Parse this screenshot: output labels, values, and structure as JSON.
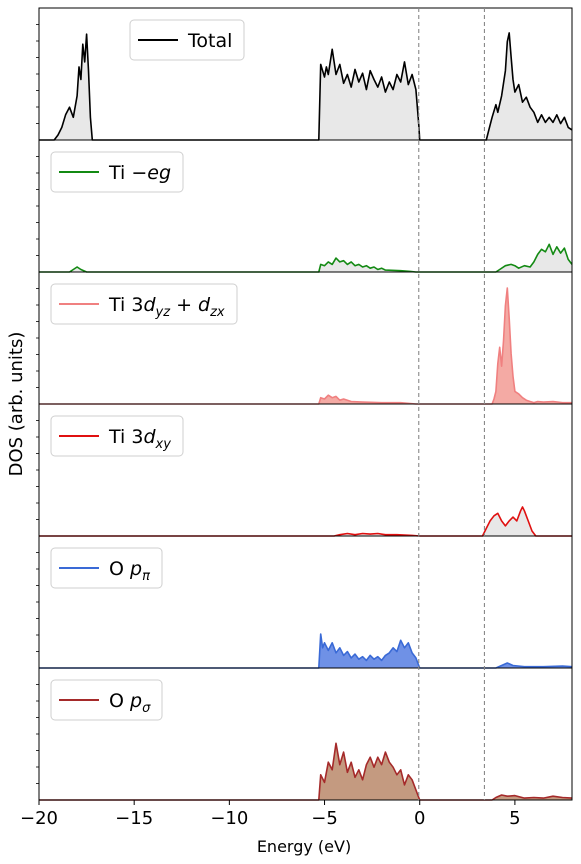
{
  "chart_data": {
    "type": "area",
    "ylabel": "DOS (arb. units)",
    "xlabel": "Energy (eV)",
    "xlim": [
      -20,
      8
    ],
    "x_ticks": [
      -20,
      -15,
      -10,
      -5,
      0,
      5
    ],
    "vlines": [
      -0.05,
      3.4
    ],
    "panels": [
      {
        "name": "Total",
        "legend": [
          {
            "text": "Total",
            "sub": ""
          }
        ],
        "line_color": "#000000",
        "fill_color": "#e8e8e8",
        "ylim": [
          0,
          1.0
        ],
        "points": [
          [
            -20,
            0
          ],
          [
            -19.2,
            0
          ],
          [
            -19.0,
            0.04
          ],
          [
            -18.8,
            0.1
          ],
          [
            -18.6,
            0.2
          ],
          [
            -18.4,
            0.26
          ],
          [
            -18.2,
            0.18
          ],
          [
            -18.0,
            0.35
          ],
          [
            -17.9,
            0.58
          ],
          [
            -17.8,
            0.48
          ],
          [
            -17.7,
            0.76
          ],
          [
            -17.6,
            0.62
          ],
          [
            -17.5,
            0.84
          ],
          [
            -17.4,
            0.55
          ],
          [
            -17.3,
            0.18
          ],
          [
            -17.2,
            0
          ],
          [
            -5.3,
            0
          ],
          [
            -5.2,
            0.6
          ],
          [
            -5.1,
            0.55
          ],
          [
            -5.0,
            0.5
          ],
          [
            -4.9,
            0.58
          ],
          [
            -4.8,
            0.52
          ],
          [
            -4.6,
            0.72
          ],
          [
            -4.5,
            0.62
          ],
          [
            -4.4,
            0.52
          ],
          [
            -4.2,
            0.6
          ],
          [
            -4.0,
            0.45
          ],
          [
            -3.8,
            0.52
          ],
          [
            -3.6,
            0.42
          ],
          [
            -3.4,
            0.56
          ],
          [
            -3.2,
            0.46
          ],
          [
            -3.0,
            0.53
          ],
          [
            -2.8,
            0.4
          ],
          [
            -2.6,
            0.55
          ],
          [
            -2.4,
            0.48
          ],
          [
            -2.2,
            0.42
          ],
          [
            -2.0,
            0.5
          ],
          [
            -1.8,
            0.38
          ],
          [
            -1.6,
            0.46
          ],
          [
            -1.4,
            0.4
          ],
          [
            -1.2,
            0.52
          ],
          [
            -1.0,
            0.46
          ],
          [
            -0.8,
            0.62
          ],
          [
            -0.6,
            0.44
          ],
          [
            -0.4,
            0.52
          ],
          [
            -0.2,
            0.4
          ],
          [
            -0.05,
            0.12
          ],
          [
            0.0,
            0
          ],
          [
            3.5,
            0
          ],
          [
            3.6,
            0.06
          ],
          [
            3.8,
            0.18
          ],
          [
            4.0,
            0.28
          ],
          [
            4.1,
            0.22
          ],
          [
            4.3,
            0.35
          ],
          [
            4.5,
            0.55
          ],
          [
            4.6,
            0.78
          ],
          [
            4.7,
            0.85
          ],
          [
            4.8,
            0.66
          ],
          [
            4.9,
            0.48
          ],
          [
            5.0,
            0.38
          ],
          [
            5.2,
            0.44
          ],
          [
            5.4,
            0.3
          ],
          [
            5.6,
            0.34
          ],
          [
            5.8,
            0.26
          ],
          [
            6.0,
            0.22
          ],
          [
            6.2,
            0.14
          ],
          [
            6.4,
            0.2
          ],
          [
            6.6,
            0.14
          ],
          [
            6.8,
            0.18
          ],
          [
            7.0,
            0.14
          ],
          [
            7.2,
            0.2
          ],
          [
            7.4,
            0.13
          ],
          [
            7.6,
            0.18
          ],
          [
            7.8,
            0.1
          ],
          [
            8.0,
            0.08
          ]
        ]
      },
      {
        "name": "Ti -eg",
        "legend": [
          {
            "text": "Ti ",
            "sub": ""
          },
          {
            "text": "−eg",
            "sub": "",
            "italic": true
          }
        ],
        "line_color": "#138a13",
        "fill_color": "#e8e8e8",
        "ylim": [
          0,
          1.0
        ],
        "points": [
          [
            -20,
            0
          ],
          [
            -18.4,
            0
          ],
          [
            -18.2,
            0.02
          ],
          [
            -18.0,
            0.04
          ],
          [
            -17.8,
            0.02
          ],
          [
            -17.5,
            0
          ],
          [
            -5.3,
            0
          ],
          [
            -5.2,
            0.06
          ],
          [
            -5.0,
            0.05
          ],
          [
            -4.8,
            0.08
          ],
          [
            -4.6,
            0.06
          ],
          [
            -4.4,
            0.11
          ],
          [
            -4.2,
            0.08
          ],
          [
            -4.0,
            0.09
          ],
          [
            -3.8,
            0.06
          ],
          [
            -3.6,
            0.08
          ],
          [
            -3.4,
            0.05
          ],
          [
            -3.2,
            0.06
          ],
          [
            -3.0,
            0.04
          ],
          [
            -2.8,
            0.05
          ],
          [
            -2.6,
            0.03
          ],
          [
            -2.4,
            0.04
          ],
          [
            -2.2,
            0.02
          ],
          [
            -2.0,
            0.03
          ],
          [
            -1.8,
            0.015
          ],
          [
            -1.0,
            0.01
          ],
          [
            -0.5,
            0.005
          ],
          [
            -0.2,
            0
          ],
          [
            4.0,
            0
          ],
          [
            4.2,
            0.02
          ],
          [
            4.5,
            0.05
          ],
          [
            4.8,
            0.06
          ],
          [
            5.0,
            0.05
          ],
          [
            5.2,
            0.03
          ],
          [
            5.5,
            0.05
          ],
          [
            5.8,
            0.04
          ],
          [
            6.0,
            0.08
          ],
          [
            6.2,
            0.14
          ],
          [
            6.4,
            0.18
          ],
          [
            6.6,
            0.16
          ],
          [
            6.8,
            0.22
          ],
          [
            7.0,
            0.14
          ],
          [
            7.2,
            0.2
          ],
          [
            7.4,
            0.15
          ],
          [
            7.6,
            0.19
          ],
          [
            7.8,
            0.1
          ],
          [
            8.0,
            0.06
          ]
        ]
      },
      {
        "name": "Ti 3d_yz + d_zx",
        "legend": [
          {
            "text": "Ti 3",
            "sub": ""
          },
          {
            "text": "d",
            "sub": "yz",
            "italic": true
          },
          {
            "text": " + ",
            "sub": ""
          },
          {
            "text": "d",
            "sub": "zx",
            "italic": true
          }
        ],
        "line_color": "#f08080",
        "fill_color": "#f4aaa4",
        "ylim": [
          0,
          1.0
        ],
        "points": [
          [
            -20,
            0
          ],
          [
            -5.3,
            0
          ],
          [
            -5.2,
            0.05
          ],
          [
            -5.0,
            0.04
          ],
          [
            -4.8,
            0.07
          ],
          [
            -4.6,
            0.05
          ],
          [
            -4.4,
            0.06
          ],
          [
            -4.2,
            0.03
          ],
          [
            -4.0,
            0.04
          ],
          [
            -3.6,
            0.02
          ],
          [
            -3.0,
            0.015
          ],
          [
            -2.0,
            0.01
          ],
          [
            -1.0,
            0.01
          ],
          [
            -0.2,
            0
          ],
          [
            3.8,
            0
          ],
          [
            3.9,
            0.04
          ],
          [
            4.0,
            0.1
          ],
          [
            4.1,
            0.32
          ],
          [
            4.2,
            0.45
          ],
          [
            4.3,
            0.3
          ],
          [
            4.4,
            0.5
          ],
          [
            4.5,
            0.78
          ],
          [
            4.6,
            0.92
          ],
          [
            4.7,
            0.68
          ],
          [
            4.8,
            0.4
          ],
          [
            4.9,
            0.22
          ],
          [
            5.0,
            0.1
          ],
          [
            5.2,
            0.08
          ],
          [
            5.4,
            0.05
          ],
          [
            5.6,
            0.03
          ],
          [
            5.8,
            0.02
          ],
          [
            6.0,
            0.01
          ],
          [
            6.2,
            0.02
          ],
          [
            6.5,
            0.015
          ],
          [
            7.0,
            0.02
          ],
          [
            7.5,
            0.01
          ],
          [
            8.0,
            0.01
          ]
        ]
      },
      {
        "name": "Ti 3d_xy",
        "legend": [
          {
            "text": "Ti 3",
            "sub": ""
          },
          {
            "text": "d",
            "sub": "xy",
            "italic": true
          }
        ],
        "line_color": "#e01010",
        "fill_color": "#e8e8e8",
        "ylim": [
          0,
          1.0
        ],
        "points": [
          [
            -20,
            0
          ],
          [
            -4.5,
            0
          ],
          [
            -4.2,
            0.01
          ],
          [
            -3.8,
            0.02
          ],
          [
            -3.4,
            0.01
          ],
          [
            -3.0,
            0.02
          ],
          [
            -2.6,
            0.015
          ],
          [
            -2.2,
            0.02
          ],
          [
            -1.8,
            0.01
          ],
          [
            -1.2,
            0.01
          ],
          [
            -0.4,
            0.005
          ],
          [
            0,
            0
          ],
          [
            3.3,
            0
          ],
          [
            3.5,
            0.06
          ],
          [
            3.7,
            0.12
          ],
          [
            3.9,
            0.16
          ],
          [
            4.1,
            0.18
          ],
          [
            4.3,
            0.12
          ],
          [
            4.5,
            0.08
          ],
          [
            4.7,
            0.12
          ],
          [
            4.9,
            0.15
          ],
          [
            5.1,
            0.12
          ],
          [
            5.3,
            0.2
          ],
          [
            5.4,
            0.23
          ],
          [
            5.5,
            0.2
          ],
          [
            5.7,
            0.12
          ],
          [
            5.9,
            0.04
          ],
          [
            6.1,
            0
          ],
          [
            8.0,
            0
          ]
        ]
      },
      {
        "name": "O p_pi",
        "legend": [
          {
            "text": "O ",
            "sub": ""
          },
          {
            "text": "p",
            "sub": "π",
            "italic": true
          }
        ],
        "line_color": "#3a6ad6",
        "fill_color": "#6f91e6",
        "ylim": [
          0,
          1.0
        ],
        "points": [
          [
            -20,
            0
          ],
          [
            -5.3,
            0
          ],
          [
            -5.2,
            0.27
          ],
          [
            -5.1,
            0.16
          ],
          [
            -5.0,
            0.2
          ],
          [
            -4.8,
            0.14
          ],
          [
            -4.6,
            0.2
          ],
          [
            -4.4,
            0.12
          ],
          [
            -4.2,
            0.16
          ],
          [
            -4.0,
            0.1
          ],
          [
            -3.8,
            0.13
          ],
          [
            -3.6,
            0.08
          ],
          [
            -3.4,
            0.11
          ],
          [
            -3.2,
            0.07
          ],
          [
            -3.0,
            0.09
          ],
          [
            -2.8,
            0.06
          ],
          [
            -2.6,
            0.1
          ],
          [
            -2.4,
            0.07
          ],
          [
            -2.2,
            0.09
          ],
          [
            -2.0,
            0.06
          ],
          [
            -1.8,
            0.1
          ],
          [
            -1.6,
            0.12
          ],
          [
            -1.4,
            0.16
          ],
          [
            -1.2,
            0.13
          ],
          [
            -1.0,
            0.22
          ],
          [
            -0.8,
            0.16
          ],
          [
            -0.6,
            0.2
          ],
          [
            -0.4,
            0.12
          ],
          [
            -0.2,
            0.08
          ],
          [
            0,
            0
          ],
          [
            4.0,
            0
          ],
          [
            4.3,
            0.02
          ],
          [
            4.6,
            0.04
          ],
          [
            4.9,
            0.02
          ],
          [
            5.5,
            0.01
          ],
          [
            6.5,
            0.01
          ],
          [
            7.5,
            0.015
          ],
          [
            8.0,
            0.01
          ]
        ]
      },
      {
        "name": "O p_sigma",
        "legend": [
          {
            "text": "O ",
            "sub": ""
          },
          {
            "text": "p",
            "sub": "σ",
            "italic": true
          }
        ],
        "line_color": "#a52a2a",
        "fill_color": "#c49a80",
        "ylim": [
          0,
          1.0
        ],
        "points": [
          [
            -20,
            0
          ],
          [
            -5.3,
            0
          ],
          [
            -5.2,
            0.2
          ],
          [
            -5.0,
            0.14
          ],
          [
            -4.8,
            0.3
          ],
          [
            -4.6,
            0.24
          ],
          [
            -4.4,
            0.45
          ],
          [
            -4.2,
            0.28
          ],
          [
            -4.0,
            0.38
          ],
          [
            -3.8,
            0.22
          ],
          [
            -3.6,
            0.3
          ],
          [
            -3.4,
            0.18
          ],
          [
            -3.2,
            0.24
          ],
          [
            -3.0,
            0.16
          ],
          [
            -2.8,
            0.28
          ],
          [
            -2.6,
            0.34
          ],
          [
            -2.4,
            0.26
          ],
          [
            -2.2,
            0.34
          ],
          [
            -2.0,
            0.28
          ],
          [
            -1.8,
            0.38
          ],
          [
            -1.6,
            0.3
          ],
          [
            -1.4,
            0.26
          ],
          [
            -1.2,
            0.2
          ],
          [
            -1.0,
            0.24
          ],
          [
            -0.8,
            0.12
          ],
          [
            -0.6,
            0.2
          ],
          [
            -0.4,
            0.16
          ],
          [
            -0.2,
            0.08
          ],
          [
            0,
            0
          ],
          [
            3.8,
            0
          ],
          [
            4.0,
            0.02
          ],
          [
            4.3,
            0.04
          ],
          [
            4.6,
            0.03
          ],
          [
            5.0,
            0.035
          ],
          [
            5.5,
            0.015
          ],
          [
            6.0,
            0.02
          ],
          [
            6.5,
            0.015
          ],
          [
            7.0,
            0.03
          ],
          [
            7.5,
            0.02
          ],
          [
            8.0,
            0.015
          ]
        ]
      }
    ]
  }
}
